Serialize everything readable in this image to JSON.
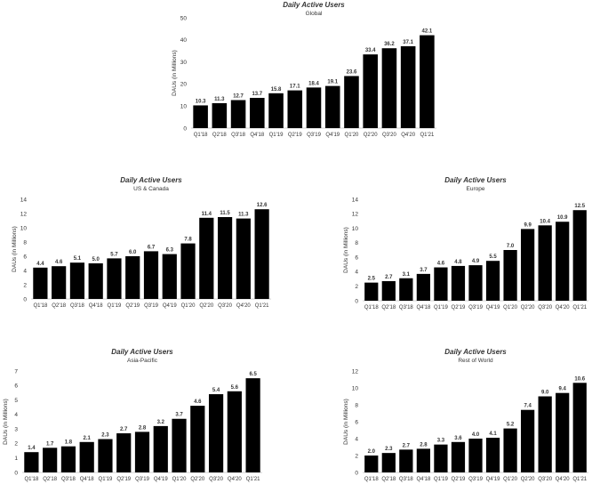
{
  "chart_data": [
    {
      "type": "bar",
      "title": "Daily Active Users",
      "subtitle": "Global",
      "xlabel": "",
      "ylabel": "DAUs (in Millions)",
      "ylim": [
        0,
        50
      ],
      "yticks": [
        0,
        10,
        20,
        30,
        40,
        50
      ],
      "grid": false,
      "categories": [
        "Q1'18",
        "Q2'18",
        "Q3'18",
        "Q4'18",
        "Q1'19",
        "Q2'19",
        "Q3'19",
        "Q4'19",
        "Q1'20",
        "Q2'20",
        "Q3'20",
        "Q4'20",
        "Q1'21"
      ],
      "values": [
        10.3,
        11.3,
        12.7,
        13.7,
        15.8,
        17.1,
        18.4,
        19.1,
        23.6,
        33.4,
        36.2,
        37.1,
        42.1
      ]
    },
    {
      "type": "bar",
      "title": "Daily Active Users",
      "subtitle": "US & Canada",
      "xlabel": "",
      "ylabel": "DAUs (in Millions)",
      "ylim": [
        0,
        14
      ],
      "yticks": [
        0,
        2,
        4,
        6,
        8,
        10,
        12,
        14
      ],
      "grid": false,
      "categories": [
        "Q1'18",
        "Q2'18",
        "Q3'18",
        "Q4'18",
        "Q1'19",
        "Q2'19",
        "Q3'19",
        "Q4'19",
        "Q1'20",
        "Q2'20",
        "Q3'20",
        "Q4'20",
        "Q1'21"
      ],
      "values": [
        4.4,
        4.6,
        5.1,
        5.0,
        5.7,
        6.0,
        6.7,
        6.3,
        7.8,
        11.4,
        11.5,
        11.3,
        12.6
      ]
    },
    {
      "type": "bar",
      "title": "Daily Active Users",
      "subtitle": "Europe",
      "xlabel": "",
      "ylabel": "DAUs (in Millions)",
      "ylim": [
        0,
        14
      ],
      "yticks": [
        0,
        2,
        4,
        6,
        8,
        10,
        12,
        14
      ],
      "grid": false,
      "categories": [
        "Q1'18",
        "Q2'18",
        "Q3'18",
        "Q4'18",
        "Q1'19",
        "Q2'19",
        "Q3'19",
        "Q4'19",
        "Q1'20",
        "Q2'20",
        "Q3'20",
        "Q4'20",
        "Q1'21"
      ],
      "values": [
        2.5,
        2.7,
        3.1,
        3.7,
        4.6,
        4.8,
        4.9,
        5.5,
        7.0,
        9.9,
        10.4,
        10.9,
        12.5
      ]
    },
    {
      "type": "bar",
      "title": "Daily Active Users",
      "subtitle": "Asia-Pacific",
      "xlabel": "",
      "ylabel": "DAUs (in Millions)",
      "ylim": [
        0,
        7
      ],
      "yticks": [
        0,
        1,
        2,
        3,
        4,
        5,
        6,
        7
      ],
      "grid": false,
      "categories": [
        "Q1'18",
        "Q2'18",
        "Q3'18",
        "Q4'18",
        "Q1'19",
        "Q2'19",
        "Q3'19",
        "Q4'19",
        "Q1'20",
        "Q2'20",
        "Q3'20",
        "Q4'20",
        "Q1'21"
      ],
      "values": [
        1.4,
        1.7,
        1.8,
        2.1,
        2.3,
        2.7,
        2.8,
        3.2,
        3.7,
        4.6,
        5.4,
        5.6,
        6.5
      ]
    },
    {
      "type": "bar",
      "title": "Daily Active Users",
      "subtitle": "Rest of World",
      "xlabel": "",
      "ylabel": "DAUs (in Millions)",
      "ylim": [
        0,
        12
      ],
      "yticks": [
        0,
        2,
        4,
        6,
        8,
        10,
        12
      ],
      "grid": false,
      "categories": [
        "Q1'18",
        "Q2'18",
        "Q3'18",
        "Q4'18",
        "Q1'19",
        "Q2'19",
        "Q3'19",
        "Q4'19",
        "Q1'20",
        "Q2'20",
        "Q3'20",
        "Q4'20",
        "Q1'21"
      ],
      "values": [
        2.0,
        2.3,
        2.7,
        2.8,
        3.3,
        3.6,
        4.0,
        4.1,
        5.2,
        7.4,
        9.0,
        9.4,
        10.6
      ]
    }
  ]
}
